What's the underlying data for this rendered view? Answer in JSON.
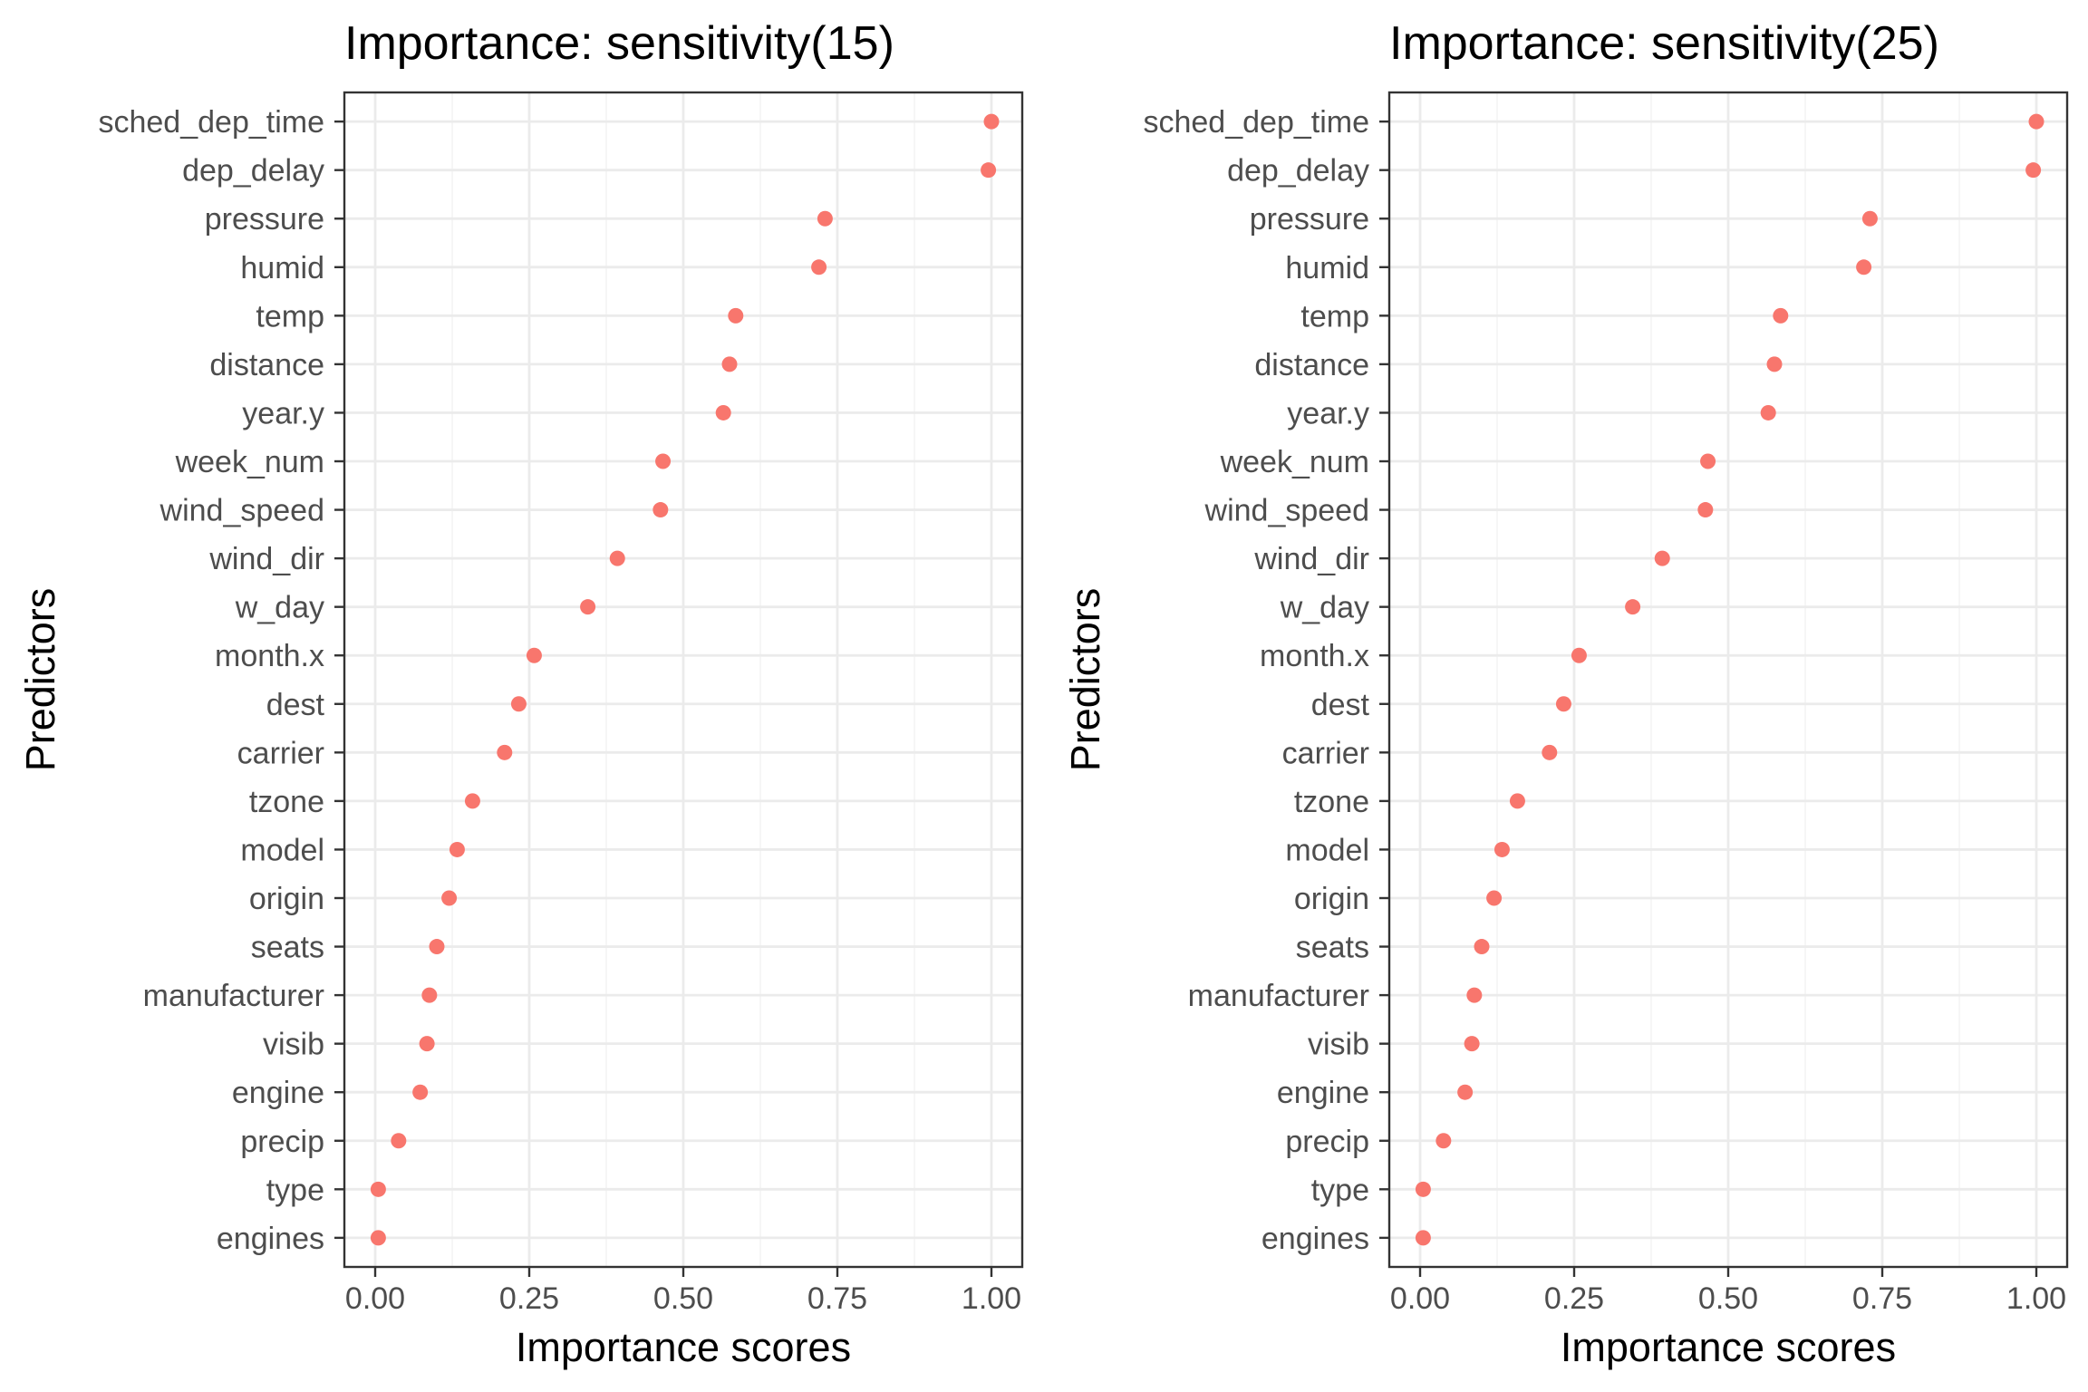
{
  "chart_data": [
    {
      "type": "scatter",
      "title": "Importance: sensitivity(15)",
      "xlabel": "Importance scores",
      "ylabel": "Predictors",
      "xlim": [
        -0.05,
        1.05
      ],
      "x_ticks": [
        "0.00",
        "0.25",
        "0.50",
        "0.75",
        "1.00"
      ],
      "x_tick_values": [
        0,
        0.25,
        0.5,
        0.75,
        1
      ],
      "grid": true,
      "point_color": "#f8766d",
      "categories": [
        "sched_dep_time",
        "dep_delay",
        "pressure",
        "humid",
        "temp",
        "distance",
        "year.y",
        "week_num",
        "wind_speed",
        "wind_dir",
        "w_day",
        "month.x",
        "dest",
        "carrier",
        "tzone",
        "model",
        "origin",
        "seats",
        "manufacturer",
        "visib",
        "engine",
        "precip",
        "type",
        "engines"
      ],
      "values": [
        1.0,
        0.995,
        0.73,
        0.72,
        0.585,
        0.575,
        0.565,
        0.467,
        0.463,
        0.393,
        0.345,
        0.258,
        0.233,
        0.21,
        0.158,
        0.133,
        0.12,
        0.1,
        0.088,
        0.084,
        0.073,
        0.038,
        0.005,
        0.005
      ]
    },
    {
      "type": "scatter",
      "title": "Importance: sensitivity(25)",
      "xlabel": "Importance scores",
      "ylabel": "Predictors",
      "xlim": [
        -0.05,
        1.05
      ],
      "x_ticks": [
        "0.00",
        "0.25",
        "0.50",
        "0.75",
        "1.00"
      ],
      "x_tick_values": [
        0,
        0.25,
        0.5,
        0.75,
        1
      ],
      "grid": true,
      "point_color": "#f8766d",
      "categories": [
        "sched_dep_time",
        "dep_delay",
        "pressure",
        "humid",
        "temp",
        "distance",
        "year.y",
        "week_num",
        "wind_speed",
        "wind_dir",
        "w_day",
        "month.x",
        "dest",
        "carrier",
        "tzone",
        "model",
        "origin",
        "seats",
        "manufacturer",
        "visib",
        "engine",
        "precip",
        "type",
        "engines"
      ],
      "values": [
        1.0,
        0.995,
        0.73,
        0.72,
        0.585,
        0.575,
        0.565,
        0.467,
        0.463,
        0.393,
        0.345,
        0.258,
        0.233,
        0.21,
        0.158,
        0.133,
        0.12,
        0.1,
        0.088,
        0.084,
        0.073,
        0.038,
        0.005,
        0.005
      ]
    }
  ]
}
